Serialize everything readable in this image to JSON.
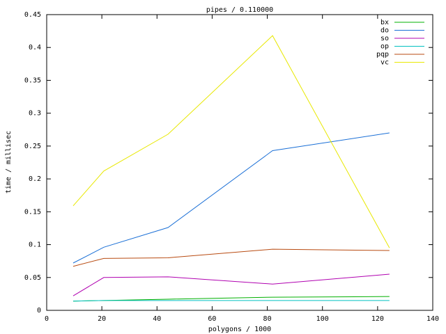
{
  "chart_data": {
    "type": "line",
    "title": "pipes / 0.110000",
    "x_label": "polygons / 1000",
    "y_label": "time / millisec",
    "x": [
      9.6,
      20.7,
      44,
      81.9,
      124.3
    ],
    "series": [
      {
        "name": "bx",
        "color": "#00b000",
        "values": [
          0.014,
          0.015,
          0.017,
          0.02,
          0.021
        ]
      },
      {
        "name": "do",
        "color": "#1a6fd6",
        "values": [
          0.072,
          0.096,
          0.126,
          0.243,
          0.27
        ]
      },
      {
        "name": "so",
        "color": "#b000b0",
        "values": [
          0.022,
          0.05,
          0.051,
          0.04,
          0.055
        ]
      },
      {
        "name": "op",
        "color": "#00c0c0",
        "values": [
          0.014,
          0.015,
          0.015,
          0.015,
          0.015
        ]
      },
      {
        "name": "pqp",
        "color": "#b84a10",
        "values": [
          0.067,
          0.079,
          0.08,
          0.093,
          0.091
        ]
      },
      {
        "name": "vc",
        "color": "#e8e800",
        "values": [
          0.159,
          0.212,
          0.268,
          0.418,
          0.095
        ]
      }
    ],
    "xlim": [
      0,
      140
    ],
    "xticks": [
      0,
      20,
      40,
      60,
      80,
      100,
      120,
      140
    ],
    "ylim": [
      0,
      0.45
    ],
    "yticks": [
      0,
      0.05,
      0.1,
      0.15,
      0.2,
      0.25,
      0.3,
      0.35,
      0.4,
      0.45
    ],
    "grid": false,
    "legend": "top-right"
  }
}
